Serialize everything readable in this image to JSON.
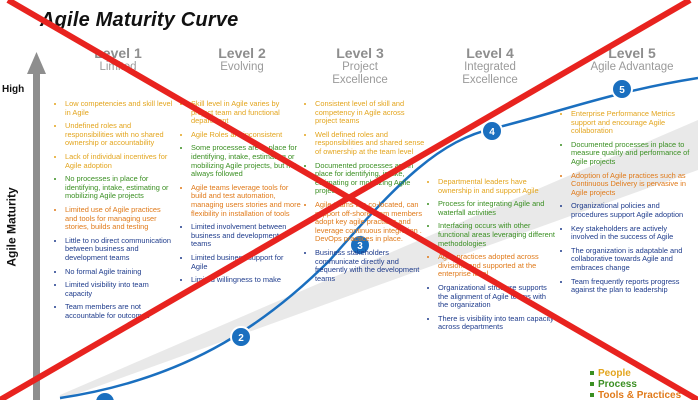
{
  "title": "Agile Maturity Curve",
  "y_axis": {
    "label": "Agile Maturity",
    "high_label": "High"
  },
  "levels": [
    {
      "name": "Level 1",
      "subtitle": "Limited"
    },
    {
      "name": "Level 2",
      "subtitle": "Evolving"
    },
    {
      "name": "Level 3",
      "subtitle": "Project Excellence"
    },
    {
      "name": "Level 4",
      "subtitle": "Integrated Excellence"
    },
    {
      "name": "Level 5",
      "subtitle": "Agile Advantage"
    }
  ],
  "markers": [
    "1",
    "2",
    "3",
    "4",
    "5"
  ],
  "columns": [
    [
      {
        "c": "y",
        "t": "Low competencies and skill level in Agile"
      },
      {
        "c": "y",
        "t": "Undefined roles and responsibilities with no shared ownership or accountability"
      },
      {
        "c": "y",
        "t": "Lack of individual incentives for Agile adoption"
      },
      {
        "c": "g",
        "t": "No processes  in place for identifying, intake, estimating or mobilizing Agile projects"
      },
      {
        "c": "o",
        "t": "Limited use of Agile practices and tools for managing user stories, builds and testing"
      },
      {
        "c": "b",
        "t": "Little to no direct communication between business and development teams"
      },
      {
        "c": "b",
        "t": "No formal Agile training"
      },
      {
        "c": "b",
        "t": "Limited visibility into team capacity"
      },
      {
        "c": "b",
        "t": "Team members are not accountable for outcomes"
      }
    ],
    [
      {
        "c": "y",
        "t": "Skill level in Agile varies by project team and functional department"
      },
      {
        "c": "y",
        "t": "Agile Roles are inconsistent"
      },
      {
        "c": "g",
        "t": "Some processes  are in place for identifying, intake, estimating or mobilizing Agile projects, but not always followed"
      },
      {
        "c": "o",
        "t": "Agile teams leverage tools for build and test automation, managing users stories  and more flexibility in installation of tools"
      },
      {
        "c": "b",
        "t": "Limited involvement between business  and development teams"
      },
      {
        "c": "b",
        "t": "Limited business  support  for Agile"
      },
      {
        "c": "b",
        "t": "Limited willingness to make"
      }
    ],
    [
      {
        "c": "y",
        "t": "Consistent  level of skill and competency in Agile across project teams"
      },
      {
        "c": "y",
        "t": "Well defined roles and responsibilities  and shared sense  of ownership at the team level"
      },
      {
        "c": "g",
        "t": "Documented  processes  are in place for identifying, intake, estimating or mobilizing Agile projects"
      },
      {
        "c": "o",
        "t": "Agile teams are co-located, can support off-shore team members adopt key agile practices  and leverage continuous  integration . DevOps practices in place."
      },
      {
        "c": "b",
        "t": "Business  stakeholders communicate directly and frequently with the development teams"
      }
    ],
    [
      {
        "c": "y",
        "t": "Departmental leaders have ownership in and support Agile"
      },
      {
        "c": "g",
        "t": "Process  for integrating Agile and waterfall activities"
      },
      {
        "c": "g",
        "t": "Interfacing occurs with other functional areas leveraging different methodologies"
      },
      {
        "c": "o",
        "t": "Agile practices adopted across divisions and supported at the enterprise level"
      },
      {
        "c": "b",
        "t": "Organizational structure supports the alignment of Agile teams with the organization"
      },
      {
        "c": "b",
        "t": "There is visibility into team capacity across  departments"
      }
    ],
    [
      {
        "c": "y",
        "t": "Enterprise Performance Metrics support and encourage Agile collaboration"
      },
      {
        "c": "g",
        "t": "Documented processes  in place to measure quality and performance of Agile projects"
      },
      {
        "c": "o",
        "t": "Adoption of Agile practices such as Continuous  Delivery  is pervasive in Agile projects"
      },
      {
        "c": "b",
        "t": "Organizational policies and procedures support Agile adoption"
      },
      {
        "c": "b",
        "t": "Key stakeholders are actively involved in the success  of Agile"
      },
      {
        "c": "b",
        "t": "The organization is adaptable and collaborative towards Agile and embraces change"
      },
      {
        "c": "b",
        "t": "Team frequently reports progress  against the plan to leadership"
      }
    ]
  ],
  "legend": [
    {
      "label": "People",
      "color": "#e3a51e"
    },
    {
      "label": "Process",
      "color": "#3a8f22"
    },
    {
      "label": "Tools & Practices",
      "color": "#e07a1a"
    }
  ],
  "colors": {
    "curve": "#1a6fbf",
    "marker": "#1a6fbf",
    "cross": "#e8231f",
    "axis": "#8e8e8e"
  }
}
